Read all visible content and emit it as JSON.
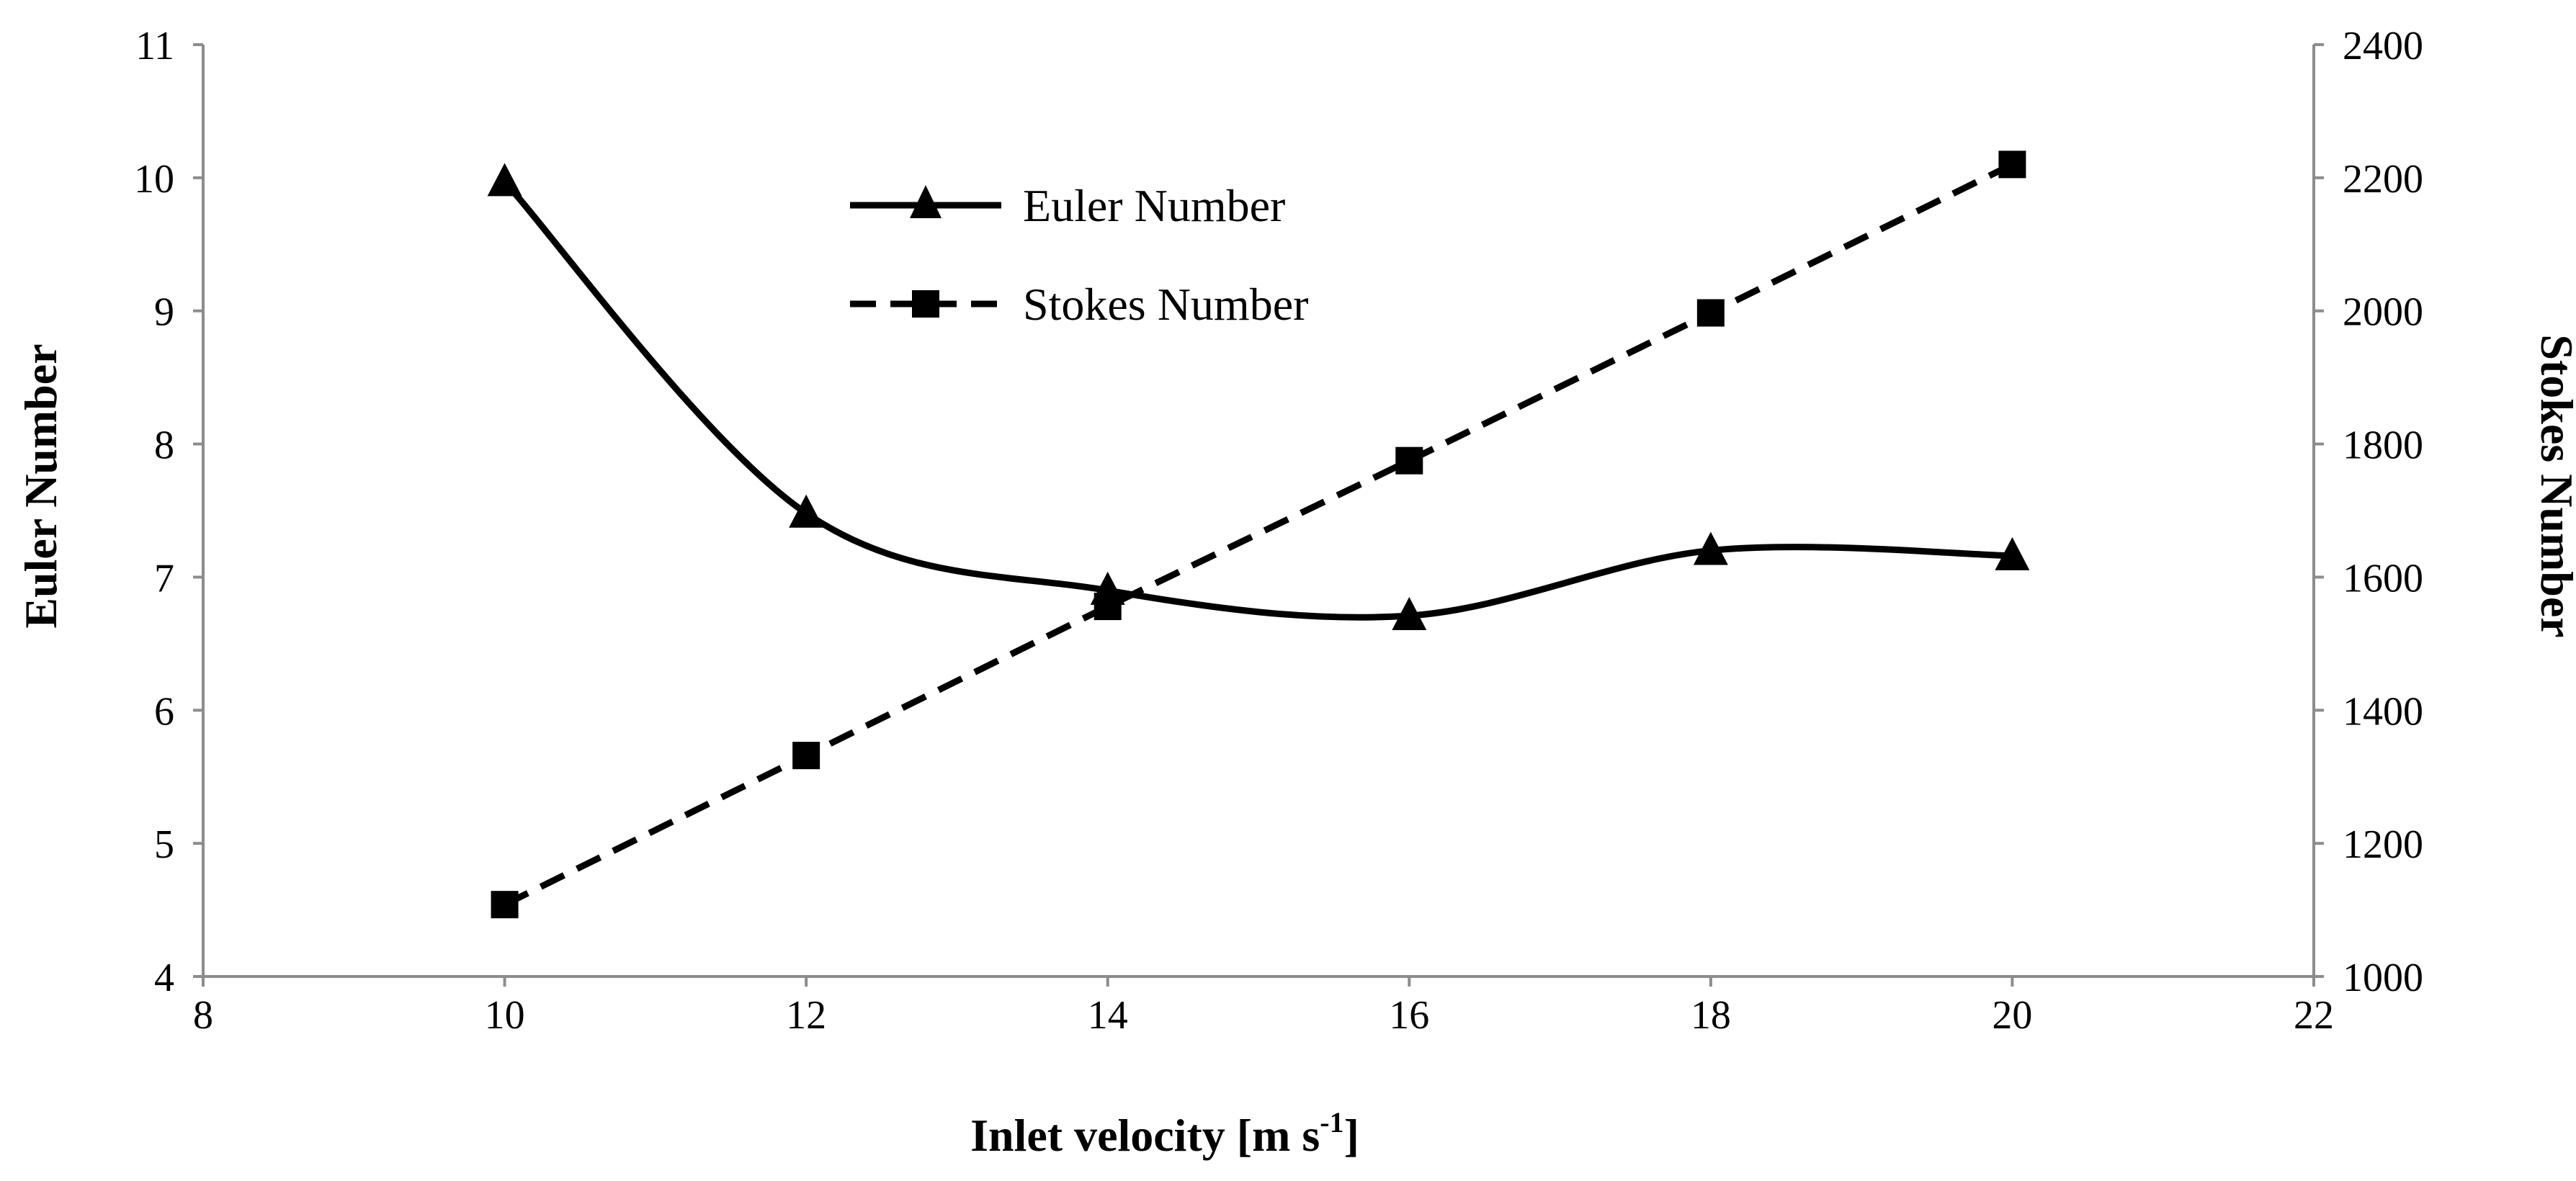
{
  "chart_data": {
    "type": "line",
    "title": "",
    "xlabel": "Inlet velocity [m s",
    "xlabel_sup": "-1",
    "xlabel_end": "]",
    "ylabel": "Euler Number",
    "y2label": "Stokes Number",
    "xlim": [
      8,
      22
    ],
    "xticks": [
      8,
      10,
      12,
      14,
      16,
      18,
      20,
      22
    ],
    "ylim": [
      4,
      11
    ],
    "yticks": [
      4,
      5,
      6,
      7,
      8,
      9,
      10,
      11
    ],
    "y2lim": [
      1000,
      2400
    ],
    "y2ticks": [
      1000,
      1200,
      1400,
      1600,
      1800,
      2000,
      2200,
      2400
    ],
    "legend_position": "top-center",
    "grid": false,
    "series": [
      {
        "name": "Euler Number",
        "axis": "left",
        "style": "solid",
        "smooth": true,
        "marker": "triangle",
        "x": [
          10,
          12,
          14,
          16,
          18,
          20
        ],
        "values": [
          9.97,
          7.48,
          6.9,
          6.71,
          7.2,
          7.16
        ]
      },
      {
        "name": "Stokes Number",
        "axis": "right",
        "style": "dashed",
        "smooth": false,
        "marker": "square",
        "x": [
          10,
          12,
          14,
          16,
          18,
          20
        ],
        "values": [
          1108,
          1332,
          1556,
          1775,
          1997,
          2220
        ]
      }
    ],
    "colors": {
      "line": "#000000",
      "axis": "#8c8c8c"
    }
  }
}
